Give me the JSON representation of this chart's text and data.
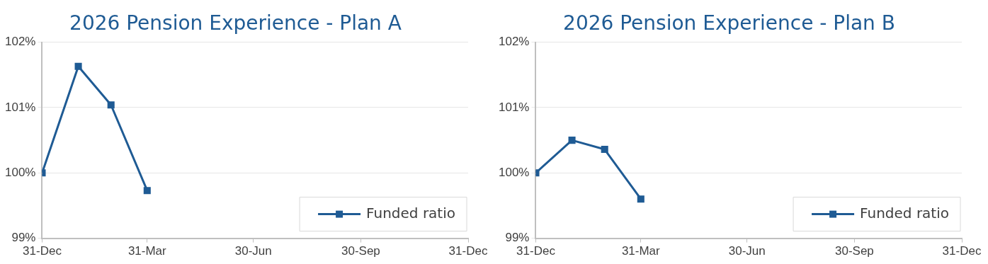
{
  "chart_data": [
    {
      "type": "line",
      "title": "2026 Pension Experience - Plan A",
      "x": [
        "2025-12-31",
        "2026-01-31",
        "2026-02-28",
        "2026-03-31"
      ],
      "series": [
        {
          "name": "Funded ratio",
          "color": "#1f5b94",
          "values": [
            100.0,
            101.63,
            101.04,
            99.73
          ]
        }
      ],
      "xlim": [
        "2025-12-31",
        "2026-12-31"
      ],
      "xticks": [
        {
          "value": "2025-12-31",
          "label": "31-Dec"
        },
        {
          "value": "2026-03-31",
          "label": "31-Mar"
        },
        {
          "value": "2026-06-30",
          "label": "30-Jun"
        },
        {
          "value": "2026-09-30",
          "label": "30-Sep"
        },
        {
          "value": "2026-12-31",
          "label": "31-Dec"
        }
      ],
      "ylim": [
        99,
        102
      ],
      "yticks": [
        {
          "value": 99,
          "label": "99%"
        },
        {
          "value": 100,
          "label": "100%"
        },
        {
          "value": 101,
          "label": "101%"
        },
        {
          "value": 102,
          "label": "102%"
        }
      ],
      "grid": "y",
      "legend": "bottom right",
      "marker": "square",
      "line_style": "solid"
    },
    {
      "type": "line",
      "title": "2026 Pension Experience - Plan B",
      "x": [
        "2025-12-31",
        "2026-01-31",
        "2026-02-28",
        "2026-03-31"
      ],
      "series": [
        {
          "name": "Funded ratio",
          "color": "#1f5b94",
          "values": [
            100.0,
            100.5,
            100.36,
            99.6
          ]
        }
      ],
      "xlim": [
        "2025-12-31",
        "2026-12-31"
      ],
      "xticks": [
        {
          "value": "2025-12-31",
          "label": "31-Dec"
        },
        {
          "value": "2026-03-31",
          "label": "31-Mar"
        },
        {
          "value": "2026-06-30",
          "label": "30-Jun"
        },
        {
          "value": "2026-09-30",
          "label": "30-Sep"
        },
        {
          "value": "2026-12-31",
          "label": "31-Dec"
        }
      ],
      "ylim": [
        99,
        102
      ],
      "yticks": [
        {
          "value": 99,
          "label": "99%"
        },
        {
          "value": 100,
          "label": "100%"
        },
        {
          "value": 101,
          "label": "101%"
        },
        {
          "value": 102,
          "label": "102%"
        }
      ],
      "grid": "y",
      "legend": "bottom right",
      "marker": "square",
      "line_style": "solid"
    }
  ]
}
